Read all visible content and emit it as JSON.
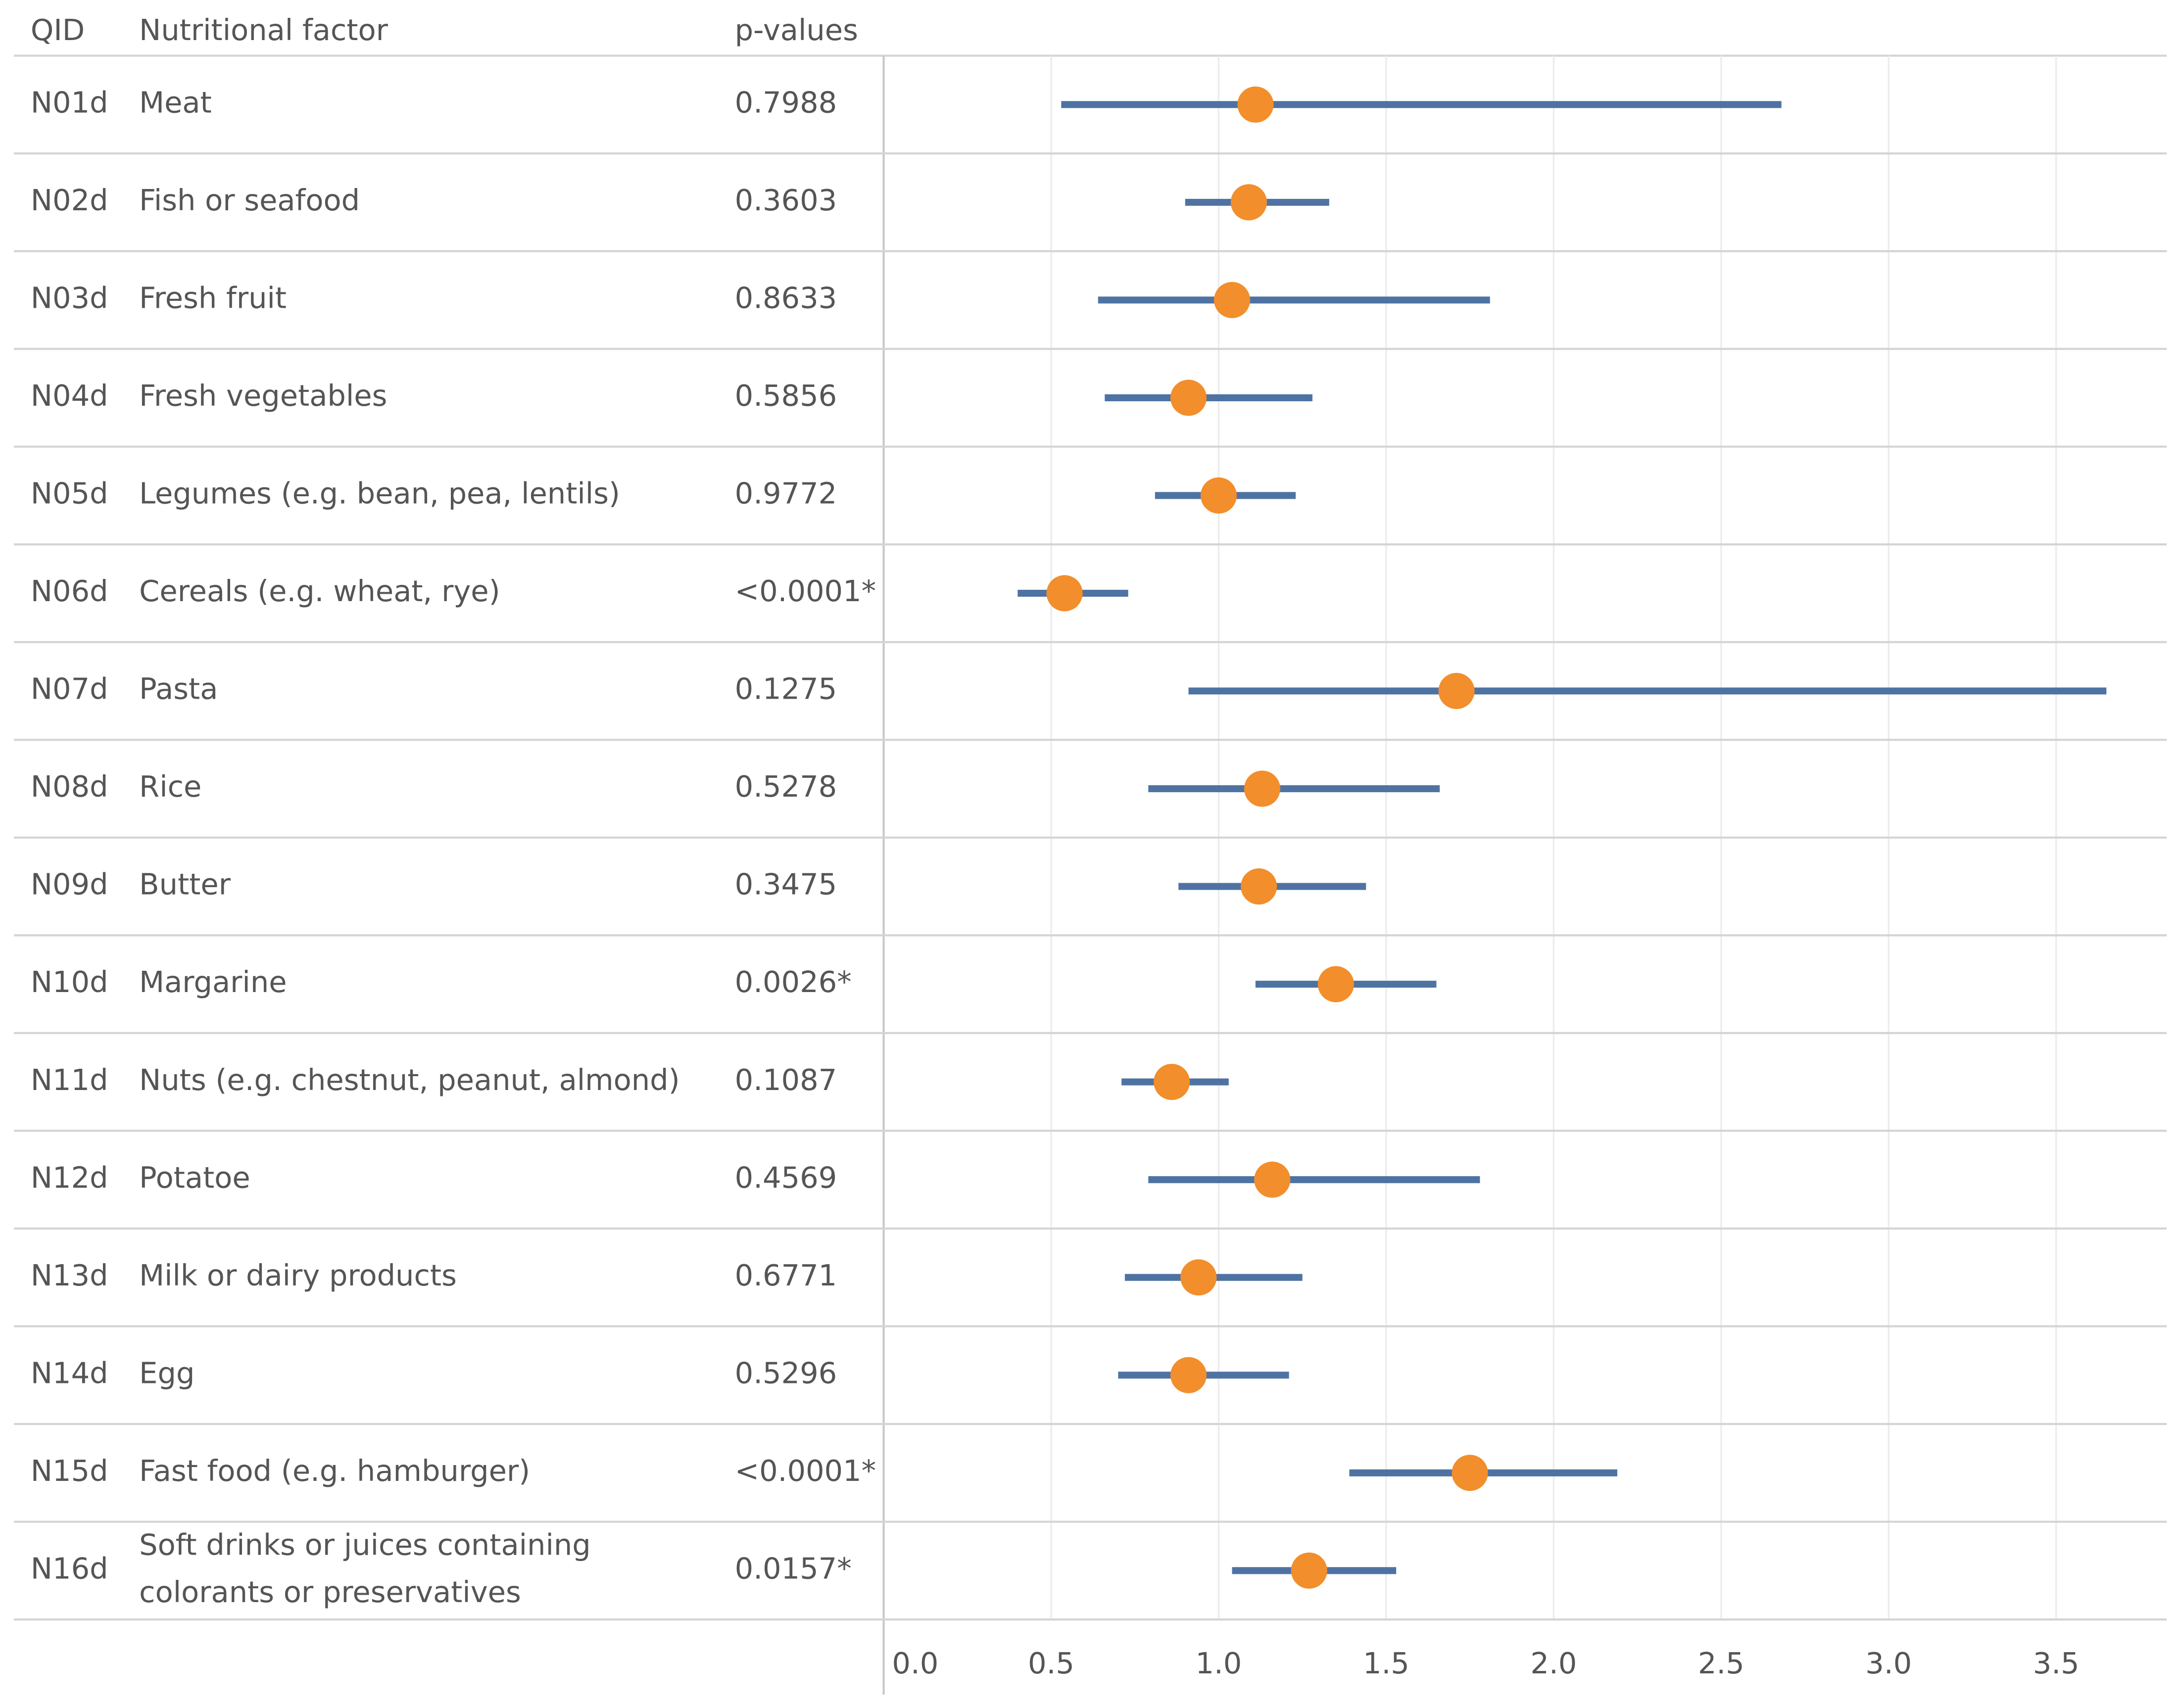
{
  "chart_data": {
    "type": "forest",
    "columns": [
      "QID",
      "Nutritional factor",
      "p-values"
    ],
    "categories": [
      "N01d",
      "N02d",
      "N03d",
      "N04d",
      "N05d",
      "N06d",
      "N07d",
      "N08d",
      "N09d",
      "N10d",
      "N11d",
      "N12d",
      "N13d",
      "N14d",
      "N15d",
      "N16d"
    ],
    "factors": [
      "Meat",
      "Fish or seafood",
      "Fresh fruit",
      "Fresh vegetables",
      "Legumes (e.g. bean, pea, lentils)",
      "Cereals (e.g. wheat, rye)",
      "Pasta",
      "Rice",
      "Butter",
      "Margarine",
      "Nuts (e.g. chestnut, peanut, almond)",
      "Potatoe",
      "Milk or dairy products",
      "Egg",
      "Fast food (e.g. hamburger)",
      "Soft drinks or juices containing colorants or preservatives"
    ],
    "p_values": [
      "0.7988",
      "0.3603",
      "0.8633",
      "0.5856",
      "0.9772",
      "<0.0001*",
      "0.1275",
      "0.5278",
      "0.3475",
      "0.0026*",
      "0.1087",
      "0.4569",
      "0.6771",
      "0.5296",
      "<0.0001*",
      "0.0157*"
    ],
    "values": [
      1.11,
      1.09,
      1.04,
      0.91,
      1.0,
      0.54,
      1.71,
      1.13,
      1.12,
      1.35,
      0.86,
      1.16,
      0.94,
      0.91,
      1.75,
      1.27
    ],
    "lower": [
      0.53,
      0.9,
      0.64,
      0.66,
      0.81,
      0.4,
      0.91,
      0.79,
      0.88,
      1.11,
      0.71,
      0.79,
      0.72,
      0.7,
      1.39,
      1.04
    ],
    "upper": [
      2.68,
      1.33,
      1.81,
      1.28,
      1.23,
      0.73,
      3.65,
      1.66,
      1.44,
      1.65,
      1.03,
      1.78,
      1.25,
      1.21,
      2.19,
      1.53
    ],
    "point_color": "#f28e2b",
    "interval_color": "#4e73a3",
    "xlim": [
      0,
      3.83
    ],
    "xticks": [
      {
        "value": 0,
        "label": "0.0"
      },
      0.5,
      {
        "value": 1,
        "label": "1.0"
      },
      1.5,
      {
        "value": 2,
        "label": "2.0"
      },
      2.5,
      {
        "value": 3,
        "label": "3.0"
      },
      3.5
    ],
    "grid": true
  }
}
